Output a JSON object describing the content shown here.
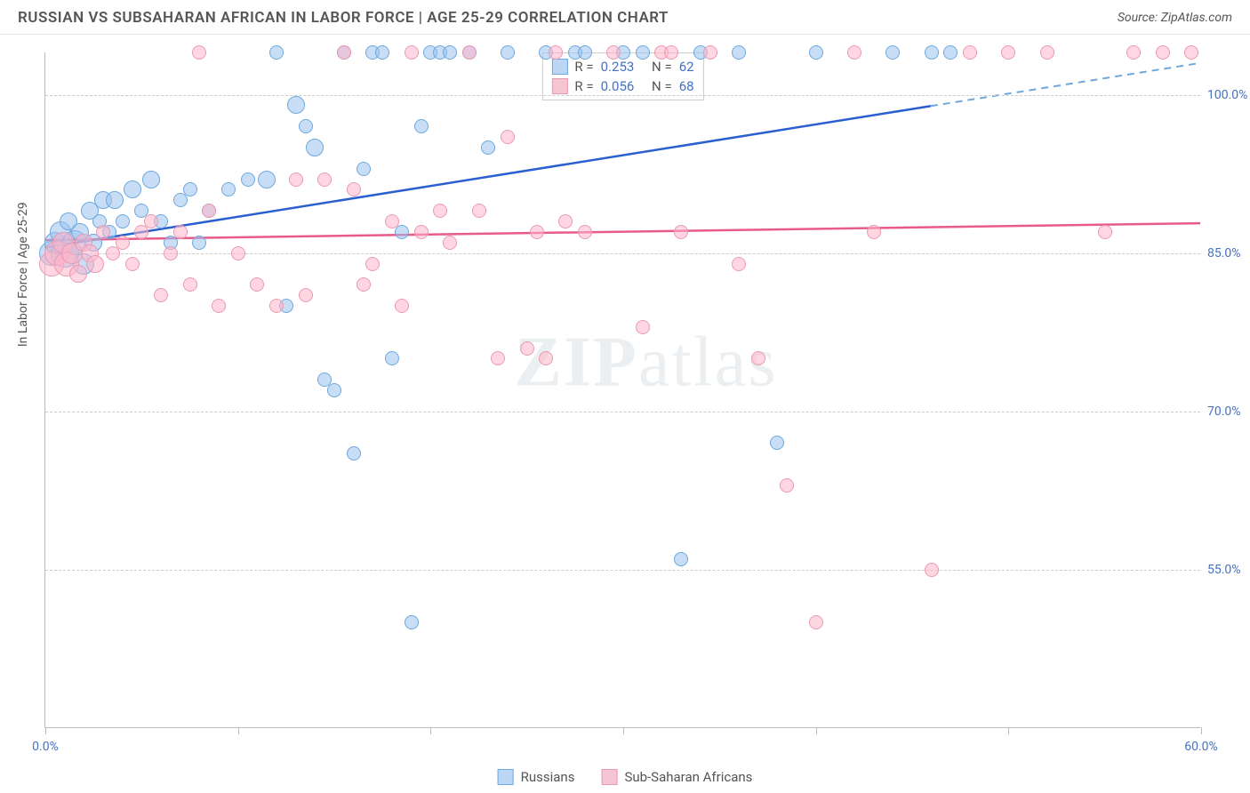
{
  "header": {
    "title": "RUSSIAN VS SUBSAHARAN AFRICAN IN LABOR FORCE | AGE 25-29 CORRELATION CHART",
    "source_label": "Source:",
    "source_name": "ZipAtlas.com"
  },
  "watermark": {
    "bold": "ZIP",
    "light": "atlas"
  },
  "chart": {
    "type": "scatter",
    "y_axis_title": "In Labor Force | Age 25-29",
    "background_color": "#ffffff",
    "grid_color": "#cccccc",
    "axis_color": "#bbbbbb",
    "label_color": "#4472c4",
    "text_color": "#555555",
    "xlim": [
      0,
      60
    ],
    "ylim": [
      40,
      104
    ],
    "x_ticks": [
      0,
      10,
      20,
      30,
      40,
      50,
      60
    ],
    "x_tick_labels": {
      "0": "0.0%",
      "60": "60.0%"
    },
    "y_gridlines": [
      55,
      70,
      85,
      100
    ],
    "y_tick_labels": {
      "55": "55.0%",
      "70": "70.0%",
      "85": "85.0%",
      "100": "100.0%"
    },
    "series": [
      {
        "name": "Russians",
        "fill_color": "rgba(155,195,240,0.55)",
        "stroke_color": "#6fa8dc",
        "trend_color": "#2a5fd0",
        "trend_dash_color": "#6fa8dc",
        "R": "0.253",
        "N": "62",
        "legend_swatch_fill": "#bcd6f5",
        "legend_swatch_border": "#6fa8dc",
        "trend": {
          "x1": 0,
          "y1": 85.5,
          "x2": 60,
          "y2": 103,
          "solid_until_x": 46
        },
        "points": [
          {
            "x": 0.3,
            "y": 85,
            "r": 14
          },
          {
            "x": 0.5,
            "y": 86,
            "r": 12
          },
          {
            "x": 0.8,
            "y": 87,
            "r": 12
          },
          {
            "x": 1.0,
            "y": 85,
            "r": 16
          },
          {
            "x": 1.2,
            "y": 88,
            "r": 10
          },
          {
            "x": 1.5,
            "y": 86,
            "r": 14
          },
          {
            "x": 1.8,
            "y": 87,
            "r": 10
          },
          {
            "x": 2.0,
            "y": 84,
            "r": 12
          },
          {
            "x": 2.3,
            "y": 89,
            "r": 10
          },
          {
            "x": 2.5,
            "y": 86,
            "r": 10
          },
          {
            "x": 2.8,
            "y": 88,
            "r": 8
          },
          {
            "x": 3.0,
            "y": 90,
            "r": 10
          },
          {
            "x": 3.3,
            "y": 87,
            "r": 8
          },
          {
            "x": 3.6,
            "y": 90,
            "r": 10
          },
          {
            "x": 4.0,
            "y": 88,
            "r": 8
          },
          {
            "x": 4.5,
            "y": 91,
            "r": 10
          },
          {
            "x": 5.0,
            "y": 89,
            "r": 8
          },
          {
            "x": 5.5,
            "y": 92,
            "r": 10
          },
          {
            "x": 6.0,
            "y": 88,
            "r": 8
          },
          {
            "x": 6.5,
            "y": 86,
            "r": 8
          },
          {
            "x": 7.0,
            "y": 90,
            "r": 8
          },
          {
            "x": 7.5,
            "y": 91,
            "r": 8
          },
          {
            "x": 8.0,
            "y": 86,
            "r": 8
          },
          {
            "x": 8.5,
            "y": 89,
            "r": 8
          },
          {
            "x": 9.5,
            "y": 91,
            "r": 8
          },
          {
            "x": 10.5,
            "y": 92,
            "r": 8
          },
          {
            "x": 11.5,
            "y": 92,
            "r": 10
          },
          {
            "x": 12.0,
            "y": 104,
            "r": 8
          },
          {
            "x": 12.5,
            "y": 80,
            "r": 8
          },
          {
            "x": 13.0,
            "y": 99,
            "r": 10
          },
          {
            "x": 13.5,
            "y": 97,
            "r": 8
          },
          {
            "x": 14.0,
            "y": 95,
            "r": 10
          },
          {
            "x": 14.5,
            "y": 73,
            "r": 8
          },
          {
            "x": 15.0,
            "y": 72,
            "r": 8
          },
          {
            "x": 15.5,
            "y": 104,
            "r": 8
          },
          {
            "x": 16.0,
            "y": 66,
            "r": 8
          },
          {
            "x": 16.5,
            "y": 93,
            "r": 8
          },
          {
            "x": 17.0,
            "y": 104,
            "r": 8
          },
          {
            "x": 17.5,
            "y": 104,
            "r": 8
          },
          {
            "x": 18.0,
            "y": 75,
            "r": 8
          },
          {
            "x": 18.5,
            "y": 87,
            "r": 8
          },
          {
            "x": 19.0,
            "y": 50,
            "r": 8
          },
          {
            "x": 19.5,
            "y": 97,
            "r": 8
          },
          {
            "x": 20.0,
            "y": 104,
            "r": 8
          },
          {
            "x": 20.5,
            "y": 104,
            "r": 8
          },
          {
            "x": 21.0,
            "y": 104,
            "r": 8
          },
          {
            "x": 22.0,
            "y": 104,
            "r": 8
          },
          {
            "x": 23.0,
            "y": 95,
            "r": 8
          },
          {
            "x": 24.0,
            "y": 104,
            "r": 8
          },
          {
            "x": 26.0,
            "y": 104,
            "r": 8
          },
          {
            "x": 27.5,
            "y": 104,
            "r": 8
          },
          {
            "x": 28.0,
            "y": 104,
            "r": 8
          },
          {
            "x": 30.0,
            "y": 104,
            "r": 8
          },
          {
            "x": 31.0,
            "y": 104,
            "r": 8
          },
          {
            "x": 33.0,
            "y": 56,
            "r": 8
          },
          {
            "x": 34.0,
            "y": 104,
            "r": 8
          },
          {
            "x": 36.0,
            "y": 104,
            "r": 8
          },
          {
            "x": 38.0,
            "y": 67,
            "r": 8
          },
          {
            "x": 40.0,
            "y": 104,
            "r": 8
          },
          {
            "x": 44.0,
            "y": 104,
            "r": 8
          },
          {
            "x": 46.0,
            "y": 104,
            "r": 8
          },
          {
            "x": 47.0,
            "y": 104,
            "r": 8
          }
        ]
      },
      {
        "name": "Sub-Saharan Africans",
        "fill_color": "rgba(255,180,200,0.55)",
        "stroke_color": "#e79bb2",
        "trend_color": "#e85a8a",
        "R": "0.056",
        "N": "68",
        "legend_swatch_fill": "#f6c5d3",
        "legend_swatch_border": "#e79bb2",
        "trend": {
          "x1": 0,
          "y1": 86.2,
          "x2": 60,
          "y2": 87.8,
          "solid_until_x": 60
        },
        "points": [
          {
            "x": 0.3,
            "y": 84,
            "r": 14
          },
          {
            "x": 0.6,
            "y": 85,
            "r": 14
          },
          {
            "x": 0.9,
            "y": 86,
            "r": 12
          },
          {
            "x": 1.1,
            "y": 84,
            "r": 14
          },
          {
            "x": 1.4,
            "y": 85,
            "r": 12
          },
          {
            "x": 1.7,
            "y": 83,
            "r": 10
          },
          {
            "x": 2.0,
            "y": 86,
            "r": 10
          },
          {
            "x": 2.3,
            "y": 85,
            "r": 10
          },
          {
            "x": 2.6,
            "y": 84,
            "r": 10
          },
          {
            "x": 3.0,
            "y": 87,
            "r": 8
          },
          {
            "x": 3.5,
            "y": 85,
            "r": 8
          },
          {
            "x": 4.0,
            "y": 86,
            "r": 8
          },
          {
            "x": 4.5,
            "y": 84,
            "r": 8
          },
          {
            "x": 5.0,
            "y": 87,
            "r": 8
          },
          {
            "x": 5.5,
            "y": 88,
            "r": 8
          },
          {
            "x": 6.0,
            "y": 81,
            "r": 8
          },
          {
            "x": 6.5,
            "y": 85,
            "r": 8
          },
          {
            "x": 7.0,
            "y": 87,
            "r": 8
          },
          {
            "x": 7.5,
            "y": 82,
            "r": 8
          },
          {
            "x": 8.0,
            "y": 104,
            "r": 8
          },
          {
            "x": 8.5,
            "y": 89,
            "r": 8
          },
          {
            "x": 9.0,
            "y": 80,
            "r": 8
          },
          {
            "x": 10.0,
            "y": 85,
            "r": 8
          },
          {
            "x": 11.0,
            "y": 82,
            "r": 8
          },
          {
            "x": 12.0,
            "y": 80,
            "r": 8
          },
          {
            "x": 13.0,
            "y": 92,
            "r": 8
          },
          {
            "x": 13.5,
            "y": 81,
            "r": 8
          },
          {
            "x": 14.5,
            "y": 92,
            "r": 8
          },
          {
            "x": 15.5,
            "y": 104,
            "r": 8
          },
          {
            "x": 16.0,
            "y": 91,
            "r": 8
          },
          {
            "x": 16.5,
            "y": 82,
            "r": 8
          },
          {
            "x": 17.0,
            "y": 84,
            "r": 8
          },
          {
            "x": 18.0,
            "y": 88,
            "r": 8
          },
          {
            "x": 18.5,
            "y": 80,
            "r": 8
          },
          {
            "x": 19.0,
            "y": 104,
            "r": 8
          },
          {
            "x": 19.5,
            "y": 87,
            "r": 8
          },
          {
            "x": 20.5,
            "y": 89,
            "r": 8
          },
          {
            "x": 21.0,
            "y": 86,
            "r": 8
          },
          {
            "x": 22.0,
            "y": 104,
            "r": 8
          },
          {
            "x": 22.5,
            "y": 89,
            "r": 8
          },
          {
            "x": 23.5,
            "y": 75,
            "r": 8
          },
          {
            "x": 24.0,
            "y": 96,
            "r": 8
          },
          {
            "x": 25.0,
            "y": 76,
            "r": 8
          },
          {
            "x": 25.5,
            "y": 87,
            "r": 8
          },
          {
            "x": 26.0,
            "y": 75,
            "r": 8
          },
          {
            "x": 26.5,
            "y": 104,
            "r": 8
          },
          {
            "x": 27.0,
            "y": 88,
            "r": 8
          },
          {
            "x": 28.0,
            "y": 87,
            "r": 8
          },
          {
            "x": 29.5,
            "y": 104,
            "r": 8
          },
          {
            "x": 31.0,
            "y": 78,
            "r": 8
          },
          {
            "x": 32.0,
            "y": 104,
            "r": 8
          },
          {
            "x": 32.5,
            "y": 104,
            "r": 8
          },
          {
            "x": 33.0,
            "y": 87,
            "r": 8
          },
          {
            "x": 34.5,
            "y": 104,
            "r": 8
          },
          {
            "x": 36.0,
            "y": 84,
            "r": 8
          },
          {
            "x": 37.0,
            "y": 75,
            "r": 8
          },
          {
            "x": 38.5,
            "y": 63,
            "r": 8
          },
          {
            "x": 40.0,
            "y": 50,
            "r": 8
          },
          {
            "x": 42.0,
            "y": 104,
            "r": 8
          },
          {
            "x": 43.0,
            "y": 87,
            "r": 8
          },
          {
            "x": 46.0,
            "y": 55,
            "r": 8
          },
          {
            "x": 48.0,
            "y": 104,
            "r": 8
          },
          {
            "x": 50.0,
            "y": 104,
            "r": 8
          },
          {
            "x": 52.0,
            "y": 104,
            "r": 8
          },
          {
            "x": 55.0,
            "y": 87,
            "r": 8
          },
          {
            "x": 56.5,
            "y": 104,
            "r": 8
          },
          {
            "x": 58.0,
            "y": 104,
            "r": 8
          },
          {
            "x": 59.5,
            "y": 104,
            "r": 8
          }
        ]
      }
    ],
    "top_legend": {
      "r_label": "R =",
      "n_label": "N ="
    },
    "bottom_legend": {
      "items": [
        "Russians",
        "Sub-Saharan Africans"
      ]
    }
  }
}
